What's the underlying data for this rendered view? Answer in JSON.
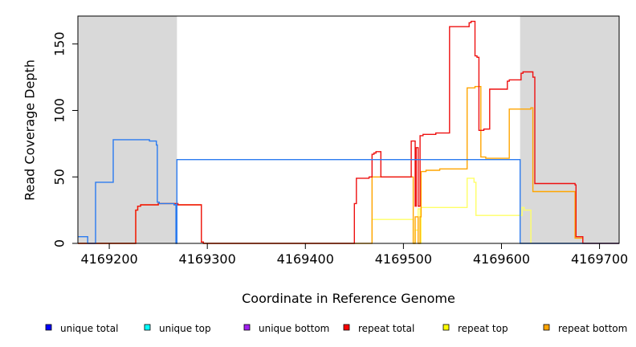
{
  "chart_data": {
    "type": "line",
    "title": "",
    "xlabel": "Coordinate in Reference Genome",
    "ylabel": "Read Coverage Depth",
    "xlim": [
      4169168,
      4169720
    ],
    "ylim": [
      0,
      171
    ],
    "x_ticks": [
      4169200,
      4169300,
      4169400,
      4169500,
      4169600,
      4169700
    ],
    "x_tick_labels": [
      "4169200",
      "4169300",
      "4169400",
      "4169500",
      "4169600",
      "4169700"
    ],
    "y_ticks": [
      0,
      50,
      100,
      150
    ],
    "y_tick_labels": [
      "0",
      "50",
      "100",
      "150"
    ],
    "shaded_regions": [
      [
        4169168,
        4169269
      ],
      [
        4169619,
        4169720
      ]
    ],
    "shade_color": "#d9d9d9",
    "legend_position": "bottom",
    "series": [
      {
        "name": "repeat top",
        "color": "#ffff66",
        "x": [
          4169468,
          4169468,
          4169510,
          4169510,
          4169512,
          4169512,
          4169515,
          4169515,
          4169517,
          4169517,
          4169518,
          4169518,
          4169565,
          4169565,
          4169572,
          4169572,
          4169574,
          4169574,
          4169621,
          4169621,
          4169623,
          4169623,
          4169630,
          4169630
        ],
        "y": [
          0,
          18,
          18,
          0,
          0,
          10,
          10,
          26,
          26,
          0,
          0,
          27,
          27,
          49,
          49,
          46,
          46,
          21,
          21,
          27,
          27,
          25,
          25,
          0
        ]
      },
      {
        "name": "repeat bottom",
        "color": "#ffa500",
        "x": [
          4169168,
          4169227,
          4169227,
          4169229,
          4169229,
          4169232,
          4169232,
          4169250,
          4169250,
          4169270,
          4169270,
          4169294,
          4169294,
          4169296,
          4169296,
          4169468,
          4169468,
          4169510,
          4169510,
          4169512,
          4169512,
          4169515,
          4169515,
          4169517,
          4169517,
          4169518,
          4169518,
          4169523,
          4169523,
          4169537,
          4169537,
          4169565,
          4169565,
          4169573,
          4169573,
          4169579,
          4169579,
          4169584,
          4169584,
          4169608,
          4169608,
          4169630,
          4169630,
          4169632,
          4169632,
          4169675,
          4169675,
          4169683,
          4169683,
          4169720
        ],
        "y": [
          0,
          0,
          25,
          25,
          28,
          28,
          29,
          29,
          30,
          30,
          29,
          29,
          1,
          1,
          0,
          0,
          50,
          50,
          0,
          0,
          20,
          20,
          0,
          0,
          20,
          20,
          54,
          54,
          55,
          55,
          56,
          56,
          117,
          117,
          118,
          118,
          65,
          65,
          64,
          64,
          101,
          101,
          102,
          102,
          39,
          39,
          4,
          4,
          0,
          0
        ]
      },
      {
        "name": "repeat total",
        "color": "#ee1111",
        "x": [
          4169168,
          4169227,
          4169227,
          4169229,
          4169229,
          4169232,
          4169232,
          4169250,
          4169250,
          4169270,
          4169270,
          4169294,
          4169294,
          4169296,
          4169296,
          4169450,
          4169450,
          4169452,
          4169452,
          4169465,
          4169465,
          4169468,
          4169468,
          4169470,
          4169470,
          4169472,
          4169472,
          4169477,
          4169477,
          4169508,
          4169508,
          4169512,
          4169512,
          4169513,
          4169513,
          4169515,
          4169515,
          4169517,
          4169517,
          4169520,
          4169520,
          4169533,
          4169533,
          4169547,
          4169547,
          4169567,
          4169567,
          4169569,
          4169569,
          4169573,
          4169573,
          4169575,
          4169575,
          4169577,
          4169577,
          4169582,
          4169582,
          4169588,
          4169588,
          4169606,
          4169606,
          4169608,
          4169608,
          4169620,
          4169620,
          4169622,
          4169622,
          4169632,
          4169632,
          4169634,
          4169634,
          4169675,
          4169675,
          4169676,
          4169676,
          4169683,
          4169683,
          4169720
        ],
        "y": [
          0,
          0,
          25,
          25,
          28,
          28,
          29,
          29,
          30,
          30,
          29,
          29,
          1,
          1,
          0,
          0,
          30,
          30,
          49,
          49,
          50,
          50,
          67,
          67,
          68,
          68,
          69,
          69,
          50,
          50,
          77,
          77,
          28,
          28,
          72,
          72,
          28,
          28,
          81,
          81,
          82,
          82,
          83,
          83,
          163,
          163,
          166,
          166,
          167,
          167,
          141,
          141,
          140,
          140,
          85,
          85,
          86,
          86,
          116,
          116,
          122,
          122,
          123,
          123,
          128,
          128,
          129,
          129,
          125,
          125,
          45,
          45,
          44,
          44,
          5,
          5,
          0,
          0
        ]
      },
      {
        "name": "unique total",
        "color": "#2b7bf0",
        "x": [
          4169168,
          4169178,
          4169178,
          4169186,
          4169186,
          4169204,
          4169204,
          4169241,
          4169241,
          4169248,
          4169248,
          4169249,
          4169249,
          4169251,
          4169251,
          4169266,
          4169266,
          4169268,
          4169268,
          4169269,
          4169269,
          4169619,
          4169619,
          4169684,
          4169684,
          4169720
        ],
        "y": [
          5,
          5,
          0,
          0,
          46,
          46,
          78,
          78,
          77,
          77,
          74,
          74,
          31,
          31,
          30,
          30,
          29,
          29,
          0,
          0,
          63,
          63,
          0,
          0,
          0,
          0
        ]
      }
    ],
    "legend": [
      {
        "label": "unique total",
        "color": "#0000ff"
      },
      {
        "label": "unique top",
        "color": "#00ffff"
      },
      {
        "label": "unique bottom",
        "color": "#a020f0"
      },
      {
        "label": "repeat total",
        "color": "#ff0000"
      },
      {
        "label": "repeat top",
        "color": "#ffff00"
      },
      {
        "label": "repeat bottom",
        "color": "#ffa500"
      }
    ]
  }
}
